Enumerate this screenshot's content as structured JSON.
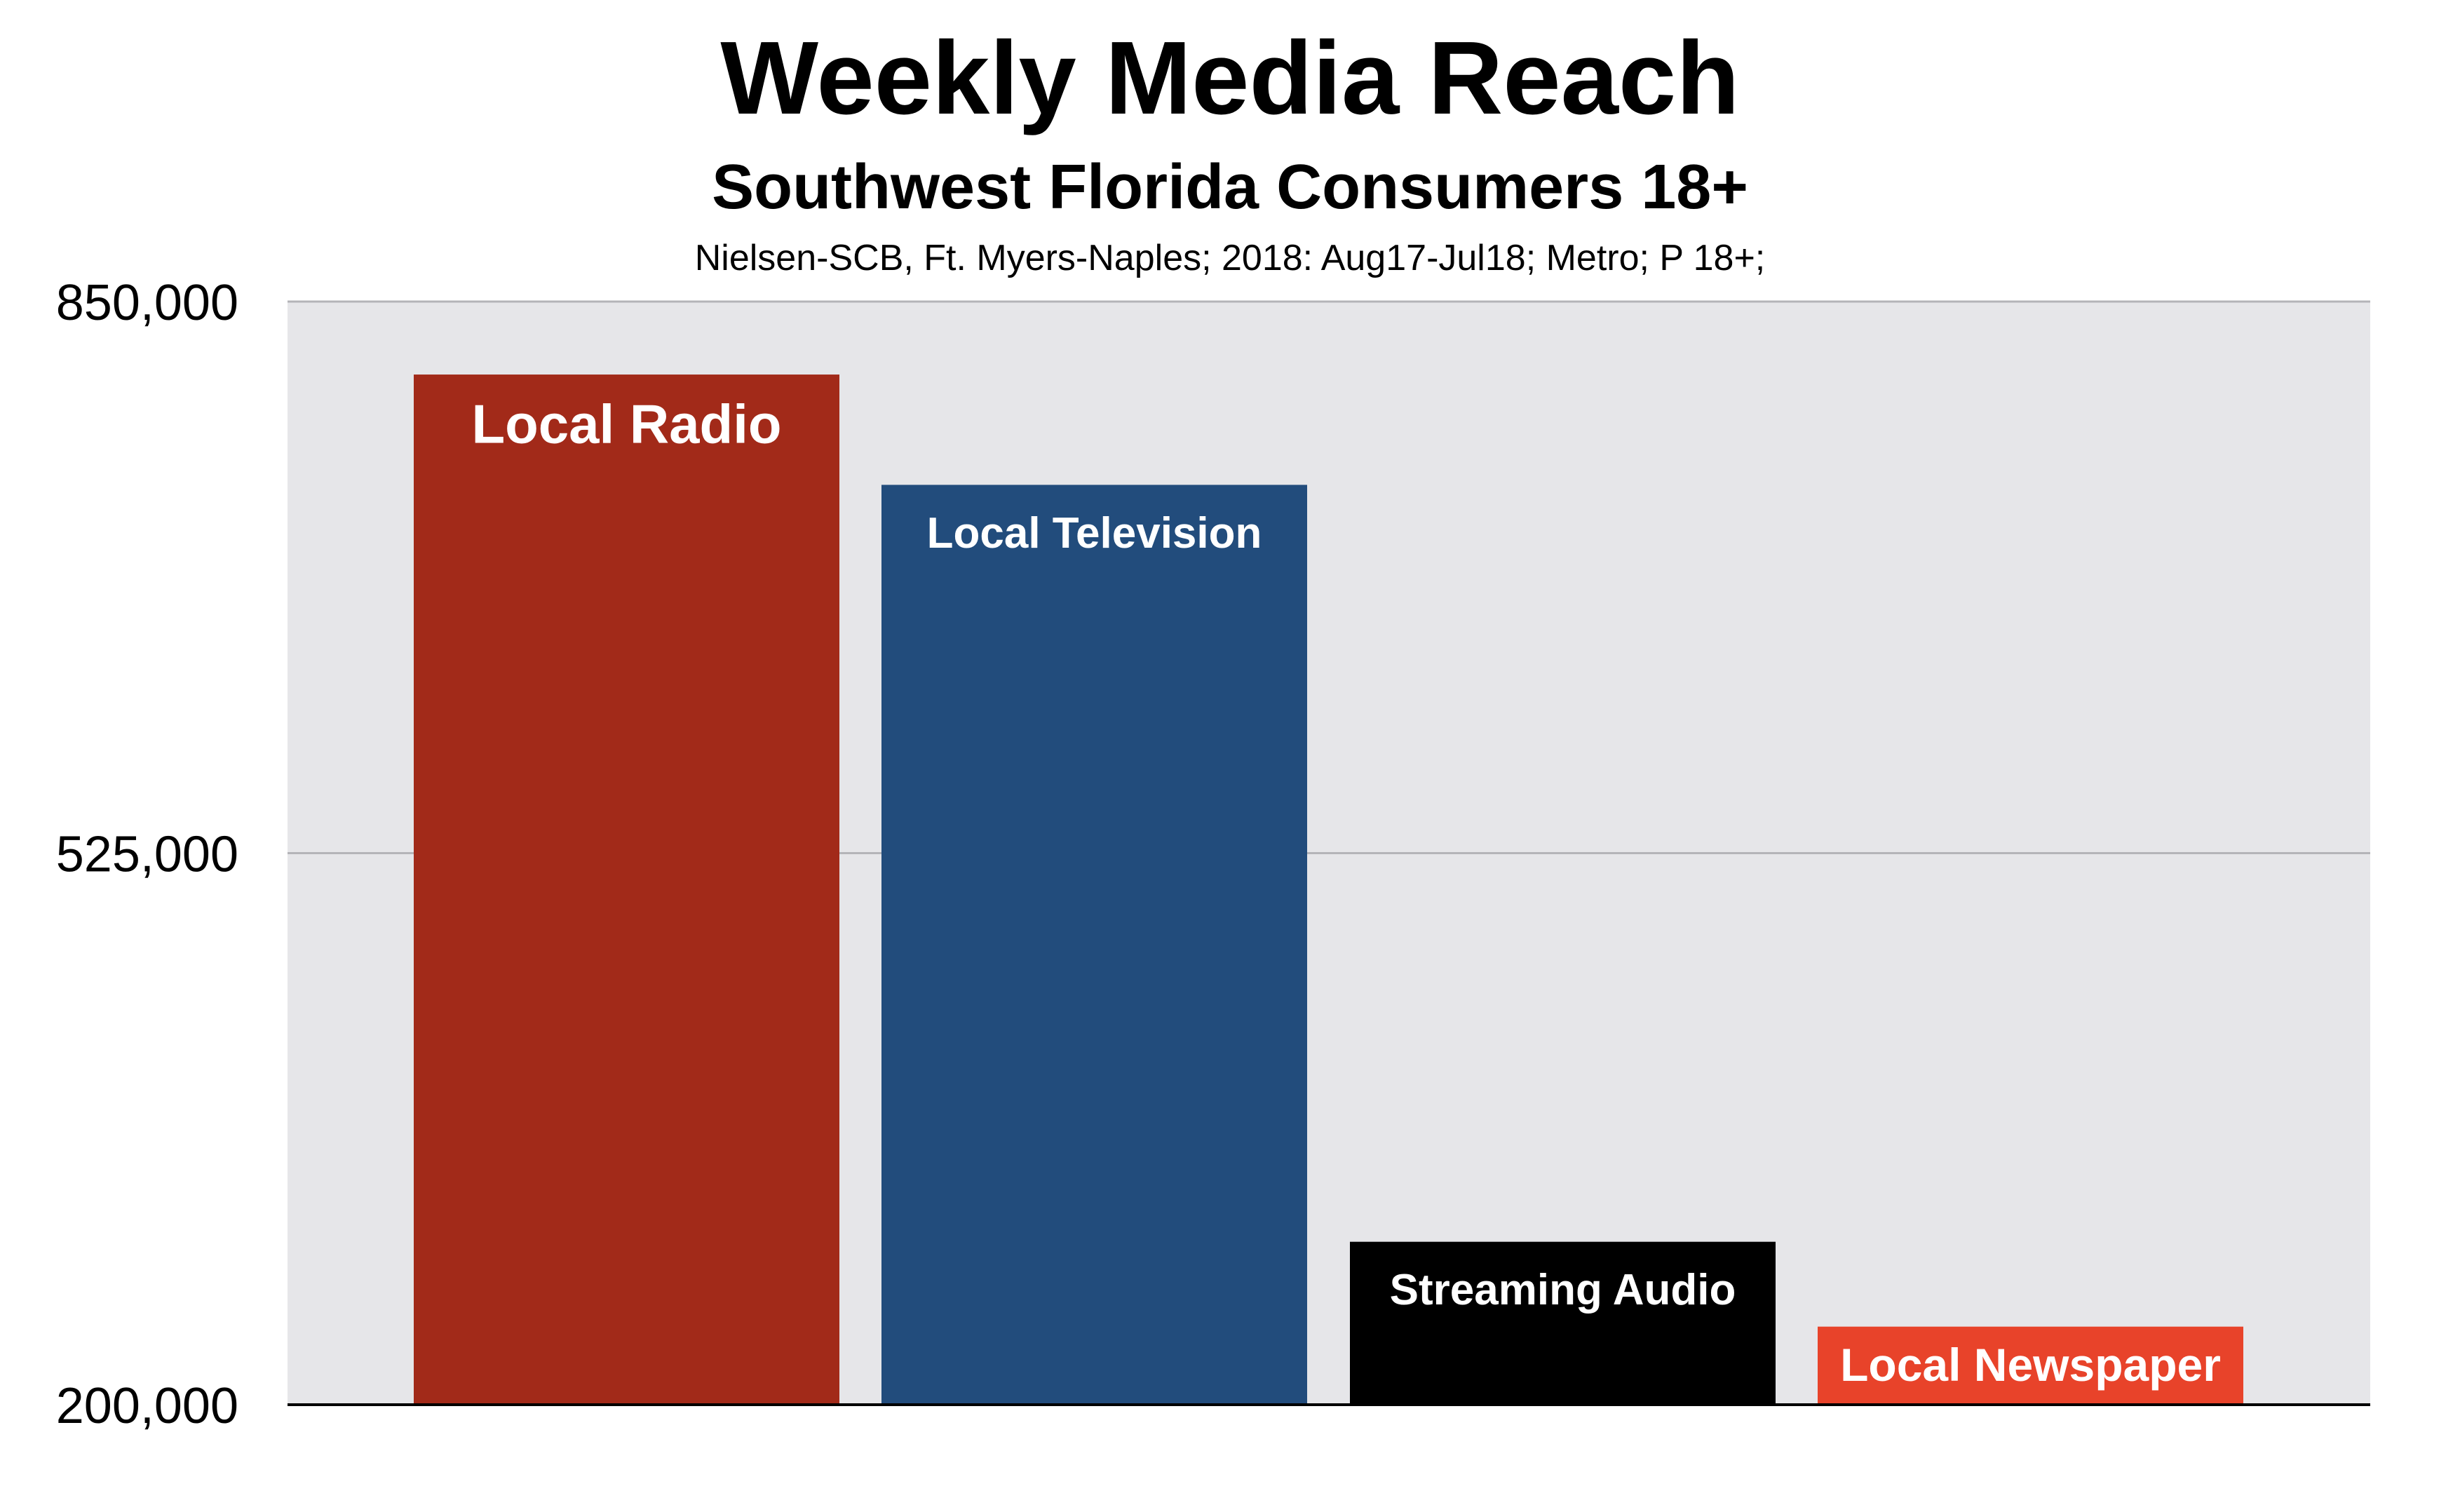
{
  "chart_data": {
    "type": "bar",
    "title": "Weekly Media Reach",
    "subtitle": "Southwest Florida Consumers 18+",
    "source": "Nielsen-SCB, Ft. Myers-Naples; 2018: Aug17-Jul18; Metro; P 18+;",
    "categories": [
      "Local Radio",
      "Local Television",
      "Streaming Audio",
      "Local Newspaper"
    ],
    "values": [
      807000,
      742000,
      296000,
      246000
    ],
    "bar_colors": [
      "#a22a19",
      "#224c7c",
      "#000000",
      "#e8432a"
    ],
    "ylim": [
      200000,
      850000
    ],
    "yticks": [
      200000,
      525000,
      850000
    ],
    "ytick_labels": [
      "200,000",
      "525,000",
      "850,000"
    ],
    "grid": true,
    "legend": "none",
    "plot_background": "#e6e6e9"
  }
}
